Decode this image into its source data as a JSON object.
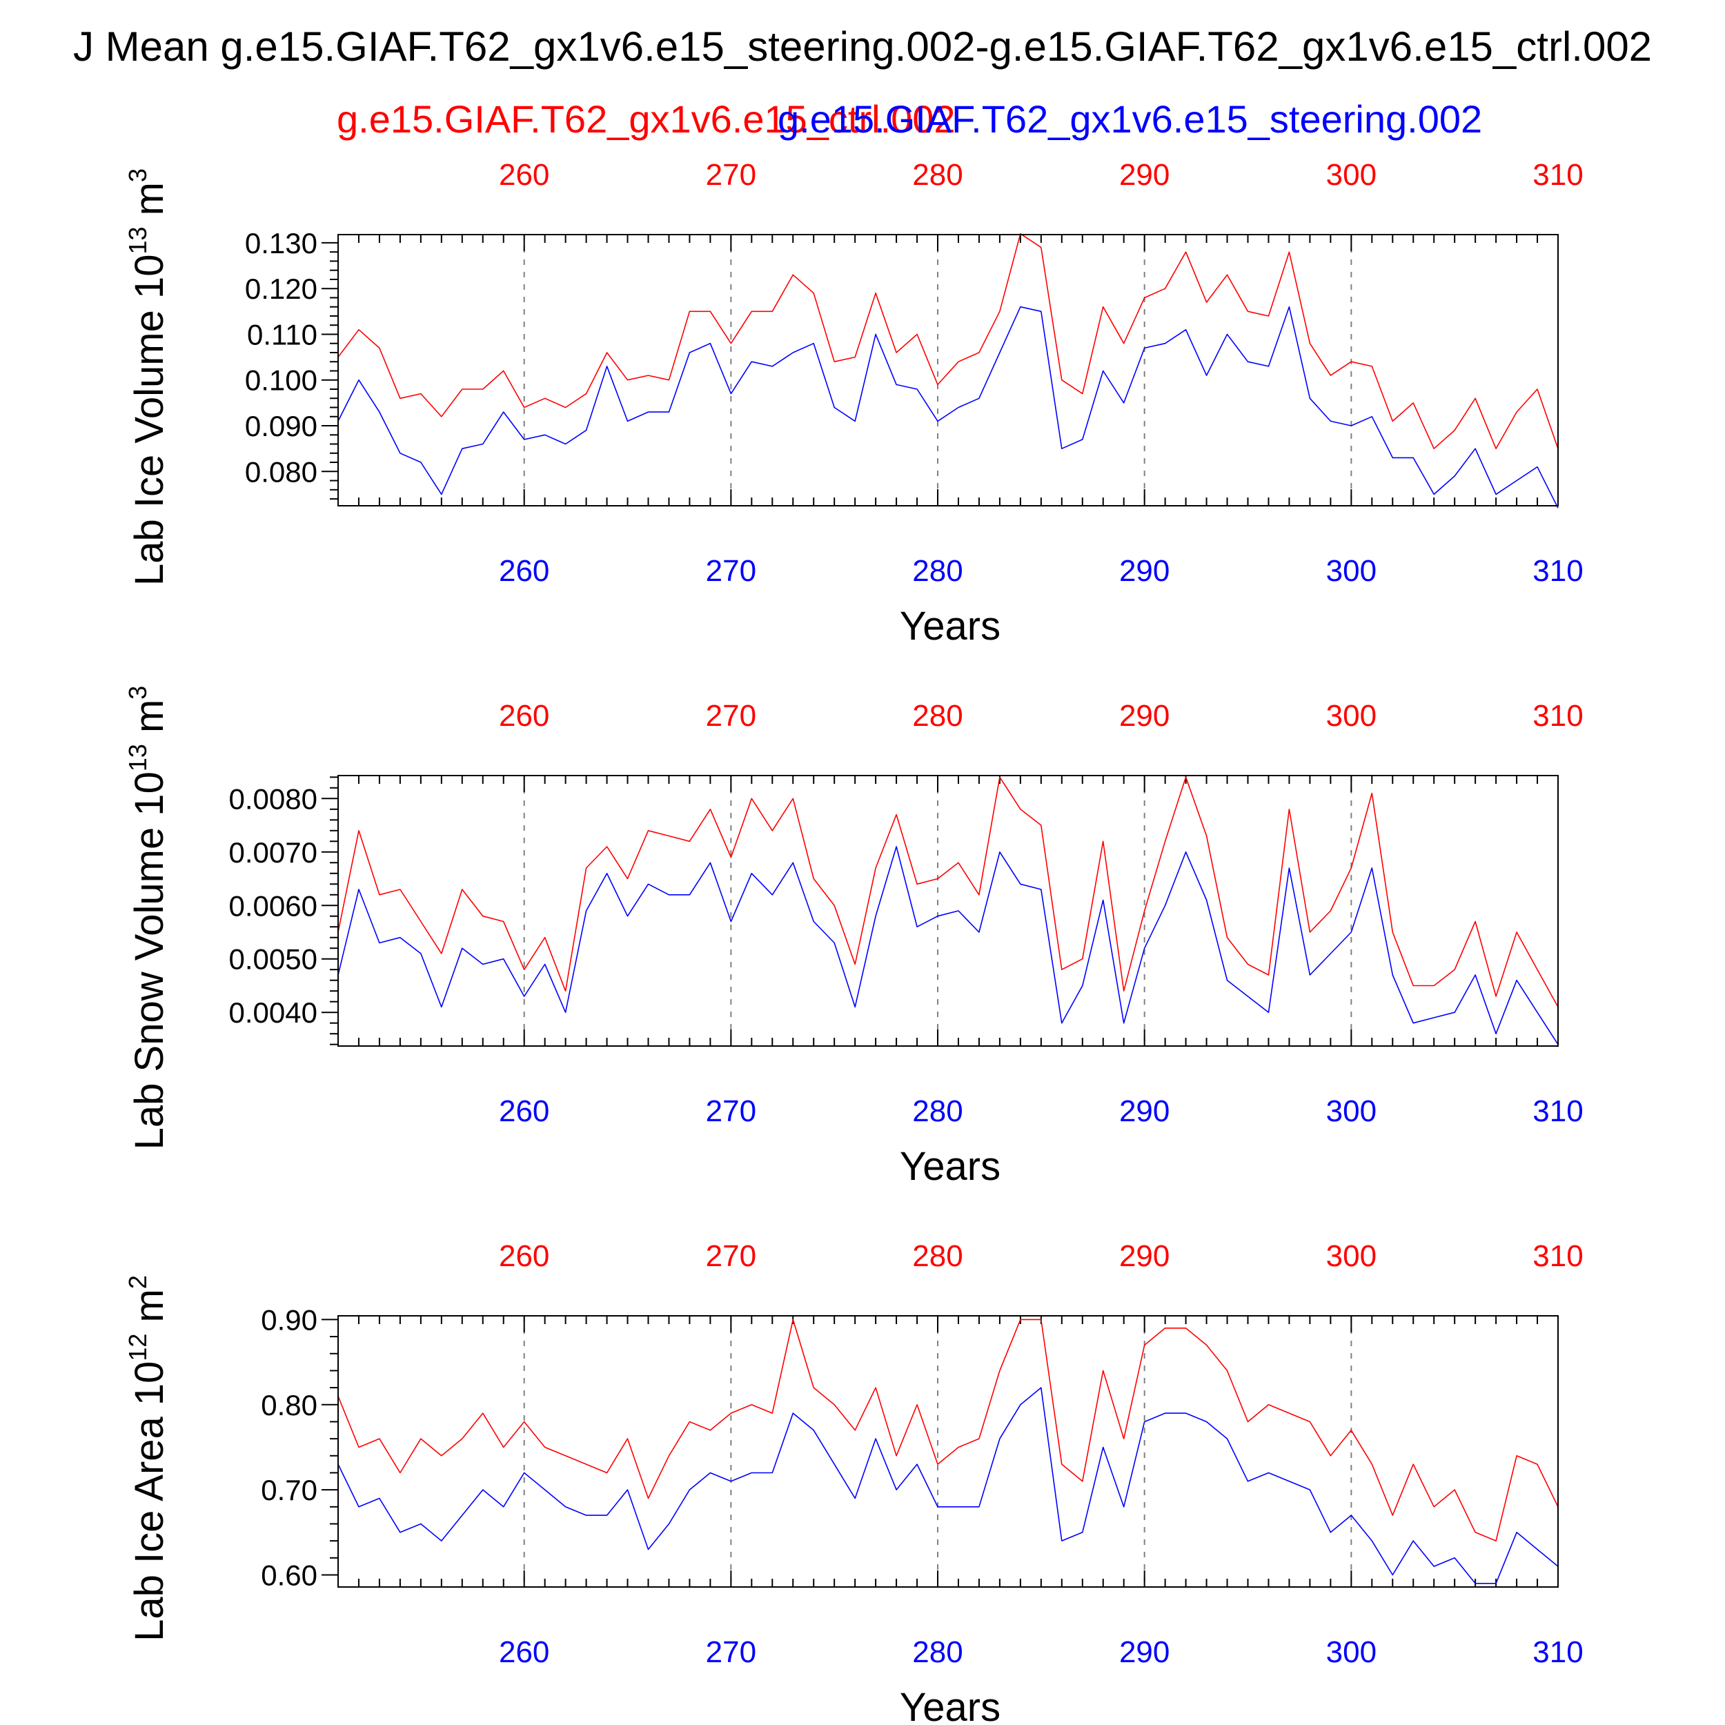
{
  "header": {
    "title": "J Mean g.e15.GIAF.T62_gx1v6.e15_steering.002-g.e15.GIAF.T62_gx1v6.e15_ctrl.002",
    "legend": {
      "ctrl": "g.e15.GIAF.T62_gx1v6.e15_ctrl.002",
      "steering": "g.e15.GIAF.T62_gx1v6.e15_steering.002"
    }
  },
  "colors": {
    "ctrl": "#ff0000",
    "steering": "#0000ff",
    "axis": "#000000",
    "grid": "#808080"
  },
  "chart_data": [
    {
      "type": "line",
      "ylabel": "Lab Ice Volume 10",
      "ylabel_sup": "13",
      "ylabel_unit": " m",
      "ylabel_unit_sup": "3",
      "xlabel": "Years",
      "xlim": [
        251,
        310
      ],
      "ylim": [
        0.0725,
        0.1318
      ],
      "yticks": [
        "0.080",
        "0.090",
        "0.100",
        "0.110",
        "0.120",
        "0.130"
      ],
      "ytick_values": [
        0.08,
        0.09,
        0.1,
        0.11,
        0.12,
        0.13
      ],
      "xticks": [
        "260",
        "270",
        "280",
        "290",
        "300",
        "310"
      ],
      "xtick_values": [
        260,
        270,
        280,
        290,
        300,
        310
      ],
      "grid": "vertical dashed at major x ticks",
      "x": [
        251,
        252,
        253,
        254,
        255,
        256,
        257,
        258,
        259,
        260,
        261,
        262,
        263,
        264,
        265,
        266,
        267,
        268,
        269,
        270,
        271,
        272,
        273,
        274,
        275,
        276,
        277,
        278,
        279,
        280,
        281,
        282,
        283,
        284,
        285,
        286,
        287,
        288,
        289,
        290,
        291,
        292,
        293,
        294,
        295,
        296,
        297,
        298,
        299,
        300,
        301,
        302,
        303,
        304,
        305,
        306,
        307,
        308,
        309,
        310
      ],
      "series": [
        {
          "name": "g.e15.GIAF.T62_gx1v6.e15_ctrl.002",
          "color": "#ff0000",
          "values": [
            0.105,
            0.111,
            0.107,
            0.096,
            0.097,
            0.092,
            0.098,
            0.098,
            0.102,
            0.094,
            0.096,
            0.094,
            0.097,
            0.106,
            0.1,
            0.101,
            0.1,
            0.115,
            0.115,
            0.108,
            0.115,
            0.115,
            0.123,
            0.119,
            0.104,
            0.105,
            0.119,
            0.106,
            0.11,
            0.099,
            0.104,
            0.106,
            0.115,
            0.132,
            0.129,
            0.1,
            0.097,
            0.116,
            0.108,
            0.118,
            0.12,
            0.128,
            0.117,
            0.123,
            0.115,
            0.114,
            0.128,
            0.108,
            0.101,
            0.104,
            0.103,
            0.091,
            0.095,
            0.085,
            0.089,
            0.096,
            0.085,
            0.093,
            0.098,
            0.085
          ]
        },
        {
          "name": "g.e15.GIAF.T62_gx1v6.e15_steering.002",
          "color": "#0000ff",
          "values": [
            0.091,
            0.1,
            0.093,
            0.084,
            0.082,
            0.075,
            0.085,
            0.086,
            0.093,
            0.087,
            0.088,
            0.086,
            0.089,
            0.103,
            0.091,
            0.093,
            0.093,
            0.106,
            0.108,
            0.097,
            0.104,
            0.103,
            0.106,
            0.108,
            0.094,
            0.091,
            0.11,
            0.099,
            0.098,
            0.091,
            0.094,
            0.096,
            0.106,
            0.116,
            0.115,
            0.085,
            0.087,
            0.102,
            0.095,
            0.107,
            0.108,
            0.111,
            0.101,
            0.11,
            0.104,
            0.103,
            0.116,
            0.096,
            0.091,
            0.09,
            0.092,
            0.083,
            0.083,
            0.075,
            0.079,
            0.085,
            0.075,
            0.078,
            0.081,
            0.072
          ]
        }
      ]
    },
    {
      "type": "line",
      "ylabel": "Lab Snow Volume 10",
      "ylabel_sup": "13",
      "ylabel_unit": " m",
      "ylabel_unit_sup": "3",
      "xlabel": "Years",
      "xlim": [
        251,
        310
      ],
      "ylim": [
        0.00337,
        0.00843
      ],
      "yticks": [
        "0.0040",
        "0.0050",
        "0.0060",
        "0.0070",
        "0.0080"
      ],
      "ytick_values": [
        0.004,
        0.005,
        0.006,
        0.007,
        0.008
      ],
      "xticks": [
        "260",
        "270",
        "280",
        "290",
        "300",
        "310"
      ],
      "xtick_values": [
        260,
        270,
        280,
        290,
        300,
        310
      ],
      "grid": "vertical dashed at major x ticks",
      "x": [
        251,
        252,
        253,
        254,
        255,
        256,
        257,
        258,
        259,
        260,
        261,
        262,
        263,
        264,
        265,
        266,
        267,
        268,
        269,
        270,
        271,
        272,
        273,
        274,
        275,
        276,
        277,
        278,
        279,
        280,
        281,
        282,
        283,
        284,
        285,
        286,
        287,
        288,
        289,
        290,
        291,
        292,
        293,
        294,
        295,
        296,
        297,
        298,
        299,
        300,
        301,
        302,
        303,
        304,
        305,
        306,
        307,
        308,
        309,
        310
      ],
      "series": [
        {
          "name": "g.e15.GIAF.T62_gx1v6.e15_ctrl.002",
          "color": "#ff0000",
          "values": [
            0.0055,
            0.0074,
            0.0062,
            0.0063,
            0.0057,
            0.0051,
            0.0063,
            0.0058,
            0.0057,
            0.0048,
            0.0054,
            0.0044,
            0.0067,
            0.0071,
            0.0065,
            0.0074,
            0.0073,
            0.0072,
            0.0078,
            0.0069,
            0.008,
            0.0074,
            0.008,
            0.0065,
            0.006,
            0.0049,
            0.0067,
            0.0077,
            0.0064,
            0.0065,
            0.0068,
            0.0062,
            0.0084,
            0.0078,
            0.0075,
            0.0048,
            0.005,
            0.0072,
            0.0044,
            0.0059,
            0.0072,
            0.0084,
            0.0073,
            0.0054,
            0.0049,
            0.0047,
            0.0078,
            0.0055,
            0.0059,
            0.0067,
            0.0081,
            0.0055,
            0.0045,
            0.0045,
            0.0048,
            0.0057,
            0.0043,
            0.0055,
            0.0048,
            0.0041
          ]
        },
        {
          "name": "g.e15.GIAF.T62_gx1v6.e15_steering.002",
          "color": "#0000ff",
          "values": [
            0.0047,
            0.0063,
            0.0053,
            0.0054,
            0.0051,
            0.0041,
            0.0052,
            0.0049,
            0.005,
            0.0043,
            0.0049,
            0.004,
            0.0059,
            0.0066,
            0.0058,
            0.0064,
            0.0062,
            0.0062,
            0.0068,
            0.0057,
            0.0066,
            0.0062,
            0.0068,
            0.0057,
            0.0053,
            0.0041,
            0.0058,
            0.0071,
            0.0056,
            0.0058,
            0.0059,
            0.0055,
            0.007,
            0.0064,
            0.0063,
            0.0038,
            0.0045,
            0.0061,
            0.0038,
            0.0052,
            0.006,
            0.007,
            0.0061,
            0.0046,
            0.0043,
            0.004,
            0.0067,
            0.0047,
            0.0051,
            0.0055,
            0.0067,
            0.0047,
            0.0038,
            0.0039,
            0.004,
            0.0047,
            0.0036,
            0.0046,
            0.004,
            0.0034
          ]
        }
      ]
    },
    {
      "type": "line",
      "ylabel": "Lab Ice Area 10",
      "ylabel_sup": "12",
      "ylabel_unit": " m",
      "ylabel_unit_sup": "2",
      "xlabel": "Years",
      "xlim": [
        251,
        310
      ],
      "ylim": [
        0.5858,
        0.9044
      ],
      "yticks": [
        "0.60",
        "0.70",
        "0.80",
        "0.90"
      ],
      "ytick_values": [
        0.6,
        0.7,
        0.8,
        0.9
      ],
      "xticks": [
        "260",
        "270",
        "280",
        "290",
        "300",
        "310"
      ],
      "xtick_values": [
        260,
        270,
        280,
        290,
        300,
        310
      ],
      "grid": "vertical dashed at major x ticks",
      "x": [
        251,
        252,
        253,
        254,
        255,
        256,
        257,
        258,
        259,
        260,
        261,
        262,
        263,
        264,
        265,
        266,
        267,
        268,
        269,
        270,
        271,
        272,
        273,
        274,
        275,
        276,
        277,
        278,
        279,
        280,
        281,
        282,
        283,
        284,
        285,
        286,
        287,
        288,
        289,
        290,
        291,
        292,
        293,
        294,
        295,
        296,
        297,
        298,
        299,
        300,
        301,
        302,
        303,
        304,
        305,
        306,
        307,
        308,
        309,
        310
      ],
      "series": [
        {
          "name": "g.e15.GIAF.T62_gx1v6.e15_ctrl.002",
          "color": "#ff0000",
          "values": [
            0.81,
            0.75,
            0.76,
            0.72,
            0.76,
            0.74,
            0.76,
            0.79,
            0.75,
            0.78,
            0.75,
            0.74,
            0.73,
            0.72,
            0.76,
            0.69,
            0.74,
            0.78,
            0.77,
            0.79,
            0.8,
            0.79,
            0.9,
            0.82,
            0.8,
            0.77,
            0.82,
            0.74,
            0.8,
            0.73,
            0.75,
            0.76,
            0.84,
            0.9,
            0.9,
            0.73,
            0.71,
            0.84,
            0.76,
            0.87,
            0.89,
            0.89,
            0.87,
            0.84,
            0.78,
            0.8,
            0.79,
            0.78,
            0.74,
            0.77,
            0.73,
            0.67,
            0.73,
            0.68,
            0.7,
            0.65,
            0.64,
            0.74,
            0.73,
            0.68
          ]
        },
        {
          "name": "g.e15.GIAF.T62_gx1v6.e15_steering.002",
          "color": "#0000ff",
          "values": [
            0.73,
            0.68,
            0.69,
            0.65,
            0.66,
            0.64,
            0.67,
            0.7,
            0.68,
            0.72,
            0.7,
            0.68,
            0.67,
            0.67,
            0.7,
            0.63,
            0.66,
            0.7,
            0.72,
            0.71,
            0.72,
            0.72,
            0.79,
            0.77,
            0.73,
            0.69,
            0.76,
            0.7,
            0.73,
            0.68,
            0.68,
            0.68,
            0.76,
            0.8,
            0.82,
            0.64,
            0.65,
            0.75,
            0.68,
            0.78,
            0.79,
            0.79,
            0.78,
            0.76,
            0.71,
            0.72,
            0.71,
            0.7,
            0.65,
            0.67,
            0.64,
            0.6,
            0.64,
            0.61,
            0.62,
            0.59,
            0.59,
            0.65,
            0.63,
            0.61
          ]
        }
      ]
    }
  ]
}
